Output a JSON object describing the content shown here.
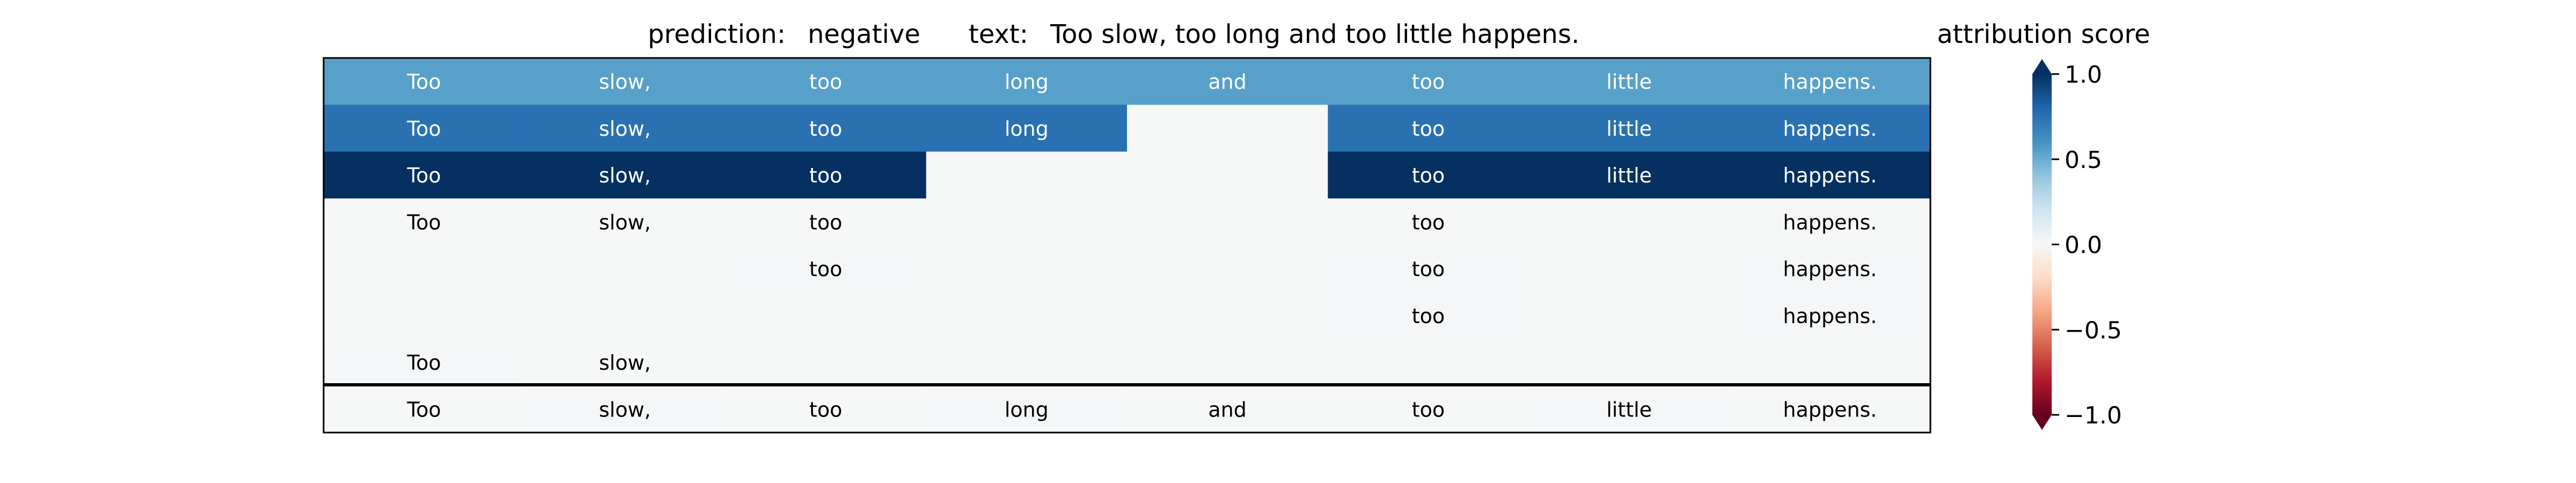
{
  "chart_data": {
    "type": "heatmap",
    "title": {
      "prediction_label": "prediction:",
      "prediction_value": "negative",
      "text_label": "text:",
      "text_value": "Too slow, too long and too little happens."
    },
    "tokens": [
      "Too",
      "slow,",
      "too",
      "long",
      "and",
      "too",
      "little",
      "happens."
    ],
    "rows": [
      {
        "shown": [
          1,
          1,
          1,
          1,
          1,
          1,
          1,
          1
        ],
        "scores": [
          0.55,
          0.55,
          0.55,
          0.55,
          0.55,
          0.55,
          0.55,
          0.55
        ]
      },
      {
        "shown": [
          1,
          1,
          1,
          1,
          0,
          1,
          1,
          1
        ],
        "scores": [
          0.75,
          0.75,
          0.75,
          0.75,
          0.0,
          0.75,
          0.75,
          0.75
        ]
      },
      {
        "shown": [
          1,
          1,
          1,
          0,
          0,
          1,
          1,
          1
        ],
        "scores": [
          1.0,
          1.0,
          1.0,
          0.0,
          0.0,
          1.0,
          1.0,
          1.0
        ]
      },
      {
        "shown": [
          1,
          1,
          1,
          0,
          0,
          1,
          0,
          1
        ],
        "scores": [
          0.0,
          0.0,
          0.0,
          0.0,
          0.0,
          0.0,
          0.0,
          0.0
        ]
      },
      {
        "shown": [
          0,
          0,
          1,
          0,
          0,
          1,
          0,
          1
        ],
        "scores": [
          0.0,
          0.0,
          0.01,
          0.0,
          0.0,
          0.01,
          0.0,
          0.01
        ]
      },
      {
        "shown": [
          0,
          0,
          0,
          0,
          0,
          1,
          0,
          1
        ],
        "scores": [
          0.0,
          0.0,
          0.0,
          0.0,
          0.0,
          0.01,
          0.0,
          0.01
        ]
      },
      {
        "shown": [
          1,
          1,
          0,
          0,
          0,
          0,
          0,
          0
        ],
        "scores": [
          0.01,
          0.0,
          0.0,
          0.0,
          0.0,
          0.0,
          0.0,
          0.0
        ]
      }
    ],
    "reference_row": {
      "shown": [
        1,
        1,
        1,
        1,
        1,
        1,
        1,
        1
      ],
      "scores": [
        0.0,
        0.01,
        0.0,
        0.01,
        0.0,
        0.0,
        0.01,
        0.0
      ]
    },
    "colorbar": {
      "label": "attribution score",
      "range": [
        -1.0,
        1.0
      ],
      "ticks": [
        1.0,
        0.5,
        0.0,
        -0.5,
        -1.0
      ],
      "tick_labels": [
        "1.0",
        "0.5",
        "0.0",
        "−0.5",
        "−1.0"
      ],
      "colormap": "RdBu"
    }
  }
}
